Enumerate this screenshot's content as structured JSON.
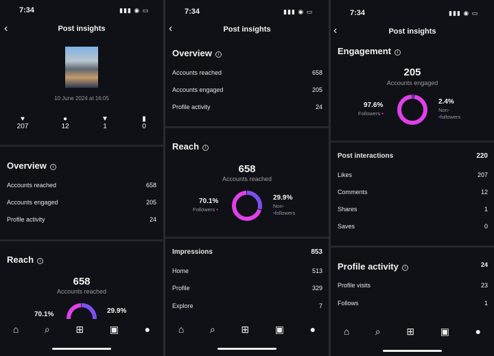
{
  "status_time": "7:34",
  "header_title": "Post insights",
  "post": {
    "date": "10 June 2024 at 16:05",
    "likes": "207",
    "comments": "12",
    "shares": "1",
    "saves": "0"
  },
  "overview": {
    "title": "Overview",
    "rows": [
      {
        "label": "Accounts reached",
        "value": "658"
      },
      {
        "label": "Accounts engaged",
        "value": "205"
      },
      {
        "label": "Profile activity",
        "value": "24"
      }
    ]
  },
  "reach": {
    "title": "Reach",
    "total": "658",
    "label": "Accounts reached",
    "followers_pct": "70.1%",
    "followers_label": "Followers",
    "non_pct": "29.9%",
    "non_label1": "Non-",
    "non_label2": "followers",
    "followers_value": 70.1
  },
  "impressions": {
    "title": "Impressions",
    "total": "853",
    "rows": [
      {
        "label": "Home",
        "value": "513"
      },
      {
        "label": "Profile",
        "value": "329"
      },
      {
        "label": "Explore",
        "value": "7"
      }
    ]
  },
  "engagement": {
    "title": "Engagement",
    "total": "205",
    "label": "Accounts engaged",
    "followers_pct": "97.6%",
    "followers_label": "Followers",
    "non_pct": "2.4%",
    "non_label1": "Non-",
    "non_label2": "followers",
    "followers_value": 97.6
  },
  "interactions": {
    "title": "Post interactions",
    "total": "220",
    "rows": [
      {
        "label": "Likes",
        "value": "207"
      },
      {
        "label": "Comments",
        "value": "12"
      },
      {
        "label": "Shares",
        "value": "1"
      },
      {
        "label": "Saves",
        "value": "0"
      }
    ]
  },
  "profile_activity": {
    "title": "Profile activity",
    "total": "24",
    "rows": [
      {
        "label": "Profile visits",
        "value": "23"
      },
      {
        "label": "Follows",
        "value": "1"
      }
    ]
  },
  "colors": {
    "followers": "#e040e8",
    "non_followers": "#7b4ff0",
    "background": "#101116"
  },
  "icons": [
    "home-icon",
    "search-icon",
    "create-icon",
    "reels-icon",
    "profile-icon"
  ]
}
